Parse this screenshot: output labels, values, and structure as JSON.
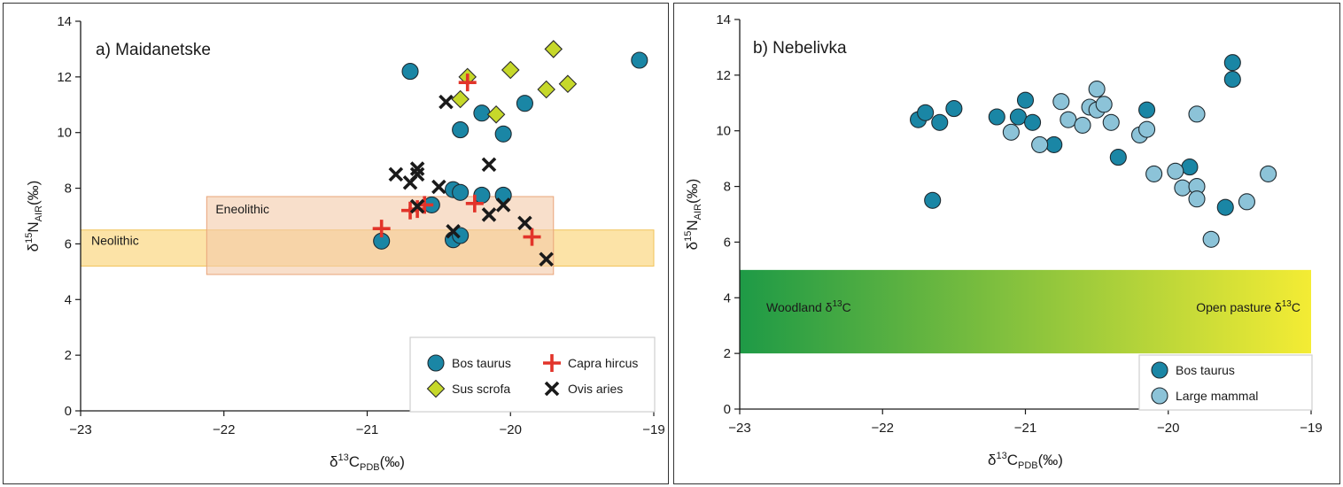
{
  "chart_data": [
    {
      "type": "scatter",
      "title": "a) Maidanetske",
      "xlabel_main": "δ",
      "xlabel_sup": "13",
      "xlabel_mid": "C",
      "xlabel_sub": "PDB",
      "xlabel_unit": "(‰)",
      "ylabel_main": "δ",
      "ylabel_sup": "15",
      "ylabel_mid": "N",
      "ylabel_sub": "AIR",
      "ylabel_unit": "(‰)",
      "xlim": [
        -23,
        -19
      ],
      "ylim": [
        0,
        14
      ],
      "xticks": [
        "−23",
        "−22",
        "−21",
        "−20",
        "−19"
      ],
      "xtick_values": [
        -23,
        -22,
        -21,
        -20,
        -19
      ],
      "yticks": [
        "0",
        "2",
        "4",
        "6",
        "8",
        "10",
        "12",
        "14"
      ],
      "ytick_values": [
        0,
        2,
        4,
        6,
        8,
        10,
        12,
        14
      ],
      "bands": [
        {
          "label": "Neolithic",
          "x": [
            -23,
            -19
          ],
          "y": [
            5.2,
            6.5
          ],
          "color": "#fbd98a"
        },
        {
          "label": "Eneolithic",
          "x": [
            -22.12,
            -19.7
          ],
          "y": [
            4.9,
            7.7
          ],
          "color": "#f3c9a8"
        }
      ],
      "legend_position": "bottom-right",
      "series": [
        {
          "name": "Bos taurus",
          "marker": "circle",
          "color": "#1a86a5",
          "points": [
            [
              -20.7,
              12.2
            ],
            [
              -19.1,
              12.6
            ],
            [
              -19.9,
              11.05
            ],
            [
              -20.2,
              10.7
            ],
            [
              -20.35,
              10.1
            ],
            [
              -20.05,
              9.95
            ],
            [
              -20.4,
              7.95
            ],
            [
              -20.35,
              7.85
            ],
            [
              -20.2,
              7.75
            ],
            [
              -20.05,
              7.75
            ],
            [
              -20.55,
              7.4
            ],
            [
              -20.4,
              6.15
            ],
            [
              -20.35,
              6.3
            ],
            [
              -20.9,
              6.1
            ]
          ]
        },
        {
          "name": "Sus scrofa",
          "marker": "diamond",
          "color": "#c6d82a",
          "points": [
            [
              -19.7,
              13.0
            ],
            [
              -20.0,
              12.25
            ],
            [
              -19.6,
              11.75
            ],
            [
              -19.75,
              11.55
            ],
            [
              -20.3,
              12.0
            ],
            [
              -20.35,
              11.2
            ],
            [
              -20.1,
              10.65
            ]
          ]
        },
        {
          "name": "Capra hircus",
          "marker": "plus",
          "color": "#e2342a",
          "points": [
            [
              -20.3,
              11.8
            ],
            [
              -20.6,
              7.4
            ],
            [
              -20.7,
              7.2
            ],
            [
              -20.65,
              7.25
            ],
            [
              -20.25,
              7.45
            ],
            [
              -20.9,
              6.55
            ],
            [
              -19.85,
              6.25
            ]
          ]
        },
        {
          "name": "Ovis aries",
          "marker": "cross",
          "color": "#1a1a1a",
          "points": [
            [
              -20.45,
              11.1
            ],
            [
              -20.15,
              8.85
            ],
            [
              -20.8,
              8.5
            ],
            [
              -20.65,
              8.7
            ],
            [
              -20.65,
              8.5
            ],
            [
              -20.7,
              8.2
            ],
            [
              -20.5,
              8.05
            ],
            [
              -20.65,
              7.35
            ],
            [
              -20.15,
              7.05
            ],
            [
              -20.05,
              7.4
            ],
            [
              -20.4,
              6.45
            ],
            [
              -19.9,
              6.75
            ],
            [
              -19.75,
              5.45
            ]
          ]
        }
      ]
    },
    {
      "type": "scatter",
      "title": "b) Nebelivka",
      "xlabel_main": "δ",
      "xlabel_sup": "13",
      "xlabel_mid": "C",
      "xlabel_sub": "PDB",
      "xlabel_unit": "(‰)",
      "ylabel_main": "δ",
      "ylabel_sup": "15",
      "ylabel_mid": "N",
      "ylabel_sub": "AIR",
      "ylabel_unit": "(‰)",
      "xlim": [
        -23,
        -19
      ],
      "ylim": [
        0,
        14
      ],
      "xticks": [
        "−23",
        "−22",
        "−21",
        "−20",
        "−19"
      ],
      "xtick_values": [
        -23,
        -22,
        -21,
        -20,
        -19
      ],
      "yticks": [
        "0",
        "2",
        "4",
        "6",
        "8",
        "10",
        "12",
        "14"
      ],
      "ytick_values": [
        0,
        2,
        4,
        6,
        8,
        10,
        12,
        14
      ],
      "gradient_band": {
        "x": [
          -23,
          -19
        ],
        "y": [
          2,
          5
        ],
        "color_start": "#1e9a46",
        "color_end": "#f4ec34"
      },
      "band_label_left_main": "Woodland δ",
      "band_label_left_sup": "13",
      "band_label_left_end": "C",
      "band_label_right_main": "Open pasture δ",
      "band_label_right_sup": "13",
      "band_label_right_end": "C",
      "legend_position": "bottom-right",
      "series": [
        {
          "name": "Bos taurus",
          "marker": "circle",
          "color": "#1a86a5",
          "points": [
            [
              -21.75,
              10.4
            ],
            [
              -21.7,
              10.65
            ],
            [
              -21.5,
              10.8
            ],
            [
              -21.6,
              10.3
            ],
            [
              -21.2,
              10.5
            ],
            [
              -21.05,
              10.5
            ],
            [
              -21.0,
              11.1
            ],
            [
              -20.95,
              10.3
            ],
            [
              -20.8,
              9.5
            ],
            [
              -20.35,
              9.05
            ],
            [
              -20.15,
              10.75
            ],
            [
              -19.85,
              8.7
            ],
            [
              -19.55,
              12.45
            ],
            [
              -19.55,
              11.85
            ],
            [
              -19.6,
              7.25
            ],
            [
              -21.65,
              7.5
            ]
          ]
        },
        {
          "name": "Large mammal",
          "marker": "circle",
          "color": "#8cc3d8",
          "points": [
            [
              -21.1,
              9.95
            ],
            [
              -20.9,
              9.5
            ],
            [
              -20.75,
              11.05
            ],
            [
              -20.7,
              10.4
            ],
            [
              -20.6,
              10.2
            ],
            [
              -20.55,
              10.85
            ],
            [
              -20.5,
              11.5
            ],
            [
              -20.5,
              10.75
            ],
            [
              -20.45,
              10.95
            ],
            [
              -20.4,
              10.3
            ],
            [
              -20.2,
              9.85
            ],
            [
              -20.15,
              10.05
            ],
            [
              -20.1,
              8.45
            ],
            [
              -19.95,
              8.55
            ],
            [
              -19.9,
              7.95
            ],
            [
              -19.8,
              8.0
            ],
            [
              -19.8,
              7.55
            ],
            [
              -19.8,
              10.6
            ],
            [
              -19.7,
              6.1
            ],
            [
              -19.45,
              7.45
            ],
            [
              -19.3,
              8.45
            ]
          ]
        }
      ]
    }
  ]
}
